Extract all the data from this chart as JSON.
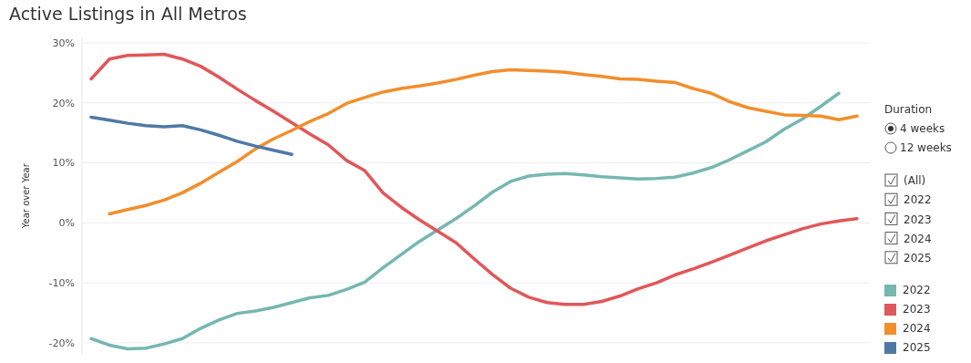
{
  "chart_data": {
    "type": "line",
    "title": "Active Listings in All Metros",
    "ylabel": "Year over Year",
    "categories": [
      null,
      null,
      null,
      null,
      null,
      null,
      null,
      null,
      null,
      null,
      null,
      null,
      null,
      null,
      null,
      null,
      null,
      null,
      null,
      null,
      null,
      null,
      null,
      null,
      null,
      null,
      null,
      null,
      null,
      null,
      null,
      null,
      null,
      null,
      null,
      null,
      null,
      null,
      null,
      null,
      null,
      null,
      null
    ],
    "series": [
      {
        "name": "2022",
        "color": "#76b7b2",
        "values": [
          -19.3,
          -20.4,
          -21,
          -20.9,
          -20.2,
          -19.3,
          -17.6,
          -16.2,
          -15.1,
          -14.7,
          -14.1,
          -13.3,
          -12.5,
          -12.1,
          -11.1,
          -9.9,
          -7.5,
          -5.3,
          -3.1,
          -1.2,
          0.7,
          2.8,
          5.1,
          6.9,
          7.8,
          8.1,
          8.2,
          8.0,
          7.7,
          7.5,
          7.3,
          7.4,
          7.6,
          8.3,
          9.2,
          10.5,
          12,
          13.5,
          15.6,
          17.3,
          19.4,
          21.6,
          null
        ]
      },
      {
        "name": "2023",
        "color": "#e15759",
        "values": [
          24,
          27.3,
          27.9,
          28,
          28.1,
          27.3,
          26.1,
          24.3,
          22.3,
          20.4,
          18.6,
          16.7,
          14.8,
          13,
          10.4,
          8.7,
          5,
          2.6,
          0.5,
          -1.4,
          -3.3,
          -6,
          -8.6,
          -10.9,
          -12.4,
          -13.3,
          -13.6,
          -13.6,
          -13.1,
          -12.2,
          -11,
          -10,
          -8.7,
          -7.7,
          -6.6,
          -5.4,
          -4.2,
          -3,
          -2,
          -1,
          -0.2,
          0.3,
          0.7
        ]
      },
      {
        "name": "2024",
        "color": "#f28e2b",
        "values": [
          null,
          1.5,
          2.2,
          2.9,
          3.8,
          5,
          6.6,
          8.4,
          10.2,
          12.3,
          14,
          15.4,
          16.9,
          18.2,
          19.9,
          20.9,
          21.8,
          22.4,
          22.8,
          23.3,
          23.9,
          24.6,
          25.2,
          25.5,
          25.4,
          25.3,
          25.1,
          24.7,
          24.4,
          24,
          23.9,
          23.6,
          23.4,
          22.4,
          21.6,
          20.2,
          19.2,
          18.6,
          18,
          17.9,
          17.8,
          17.2,
          17.8
        ]
      },
      {
        "name": "2025",
        "color": "#4e79a7",
        "values": [
          17.6,
          17.1,
          16.6,
          16.2,
          16,
          16.2,
          15.5,
          14.6,
          13.6,
          12.8,
          12.1,
          11.4,
          null,
          null,
          null,
          null,
          null,
          null,
          null,
          null,
          null,
          null,
          null,
          null,
          null,
          null,
          null,
          null,
          null,
          null,
          null,
          null,
          null,
          null,
          null,
          null,
          null,
          null,
          null,
          null,
          null,
          null,
          null
        ]
      }
    ],
    "ylim": [
      -22,
      31
    ],
    "yticks": [
      {
        "value": -20,
        "label": "-20%"
      },
      {
        "value": -10,
        "label": "-10%"
      },
      {
        "value": 0,
        "label": "0%"
      },
      {
        "value": 10,
        "label": "10%"
      },
      {
        "value": 20,
        "label": "20%"
      },
      {
        "value": 30,
        "label": "30%"
      }
    ],
    "grid": "y",
    "legend": "right",
    "marker": "none",
    "line_style": "solid",
    "annotations": [
      "Duration",
      "4 weeks",
      "12 weeks",
      "(All)",
      "2022",
      "2023",
      "2024",
      "2025"
    ]
  }
}
